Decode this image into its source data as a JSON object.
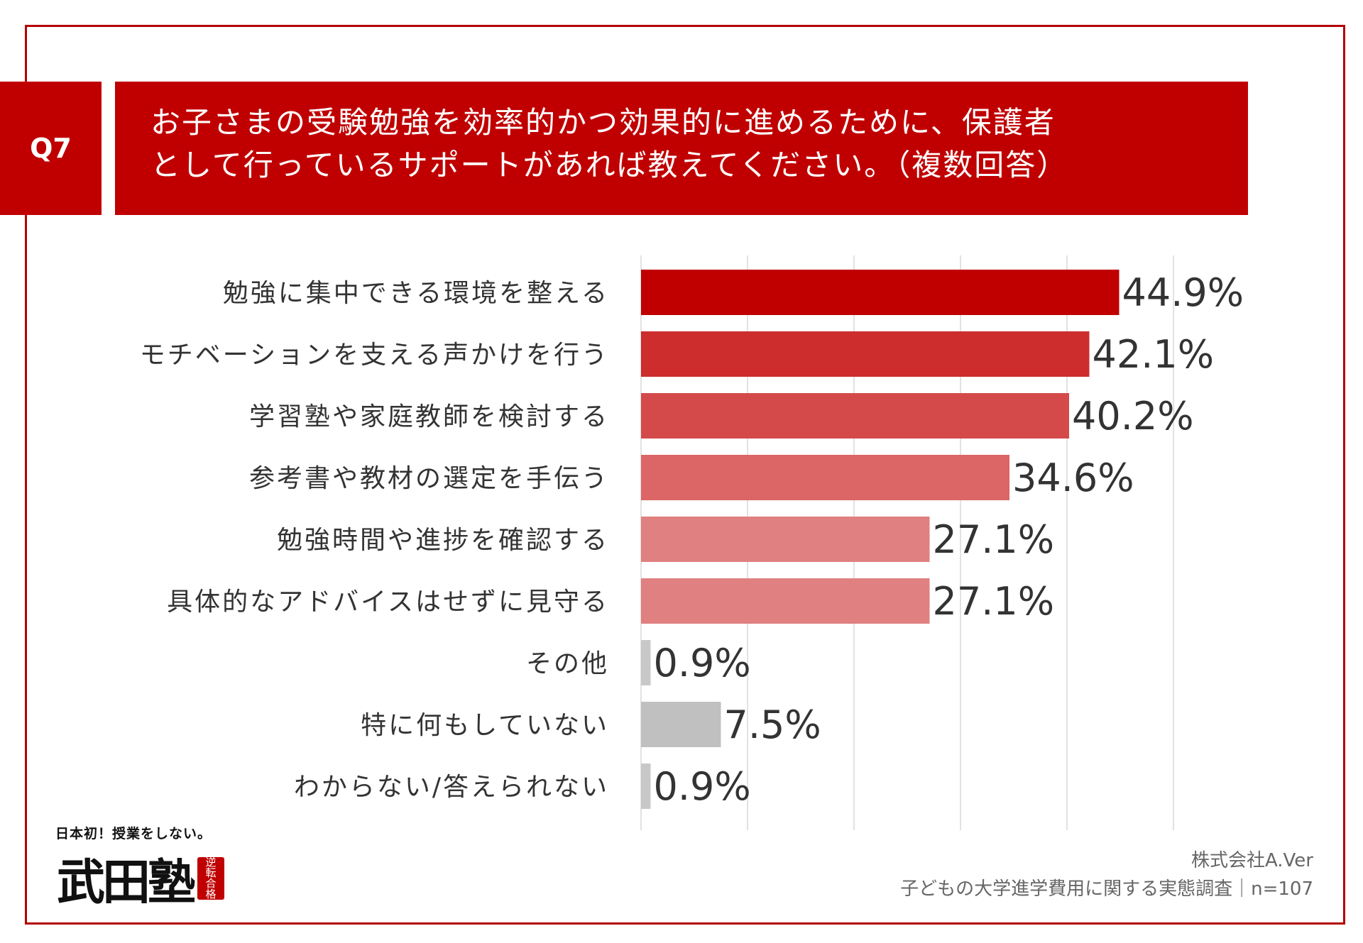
{
  "question": {
    "number": "Q7",
    "lines": [
      "お子さまの受験勉強を効率的かつ効果的に進めるために、保護者",
      "として行っているサポートがあれば教えてください。（複数回答）"
    ]
  },
  "chart_data": {
    "type": "bar",
    "orientation": "horizontal",
    "categories": [
      "勉強に集中できる環境を整える",
      "モチベーションを支える声かけを行う",
      "学習塾や家庭教師を検討する",
      "参考書や教材の選定を手伝う",
      "勉強時間や進捗を確認する",
      "具体的なアドバイスはせずに見守る",
      "その他",
      "特に何もしていない",
      "わからない/答えられない"
    ],
    "values": [
      44.9,
      42.1,
      40.2,
      34.6,
      27.1,
      27.1,
      0.9,
      7.5,
      0.9
    ],
    "value_labels": [
      "44.9%",
      "42.1%",
      "40.2%",
      "34.6%",
      "27.1%",
      "27.1%",
      "0.9%",
      "7.5%",
      "0.9%"
    ],
    "colors": [
      "#c00000",
      "#cd2d2d",
      "#d44a4a",
      "#dc6565",
      "#e08080",
      "#e08080",
      "#c8c8c8",
      "#c0c0c0",
      "#c8c8c8"
    ],
    "xlim": [
      0,
      50
    ],
    "gridlines": [
      0,
      10,
      20,
      30,
      40,
      50
    ],
    "grid": true,
    "legend": "none",
    "title": "",
    "xlabel": "",
    "ylabel": ""
  },
  "footer": {
    "company": "株式会社A.Ver",
    "survey": "子どもの大学進学費用に関する実態調査｜n=107"
  },
  "logo": {
    "tagline": "日本初！授業をしない。",
    "name": "武田塾",
    "seal": [
      "逆",
      "転",
      "合",
      "格"
    ]
  }
}
